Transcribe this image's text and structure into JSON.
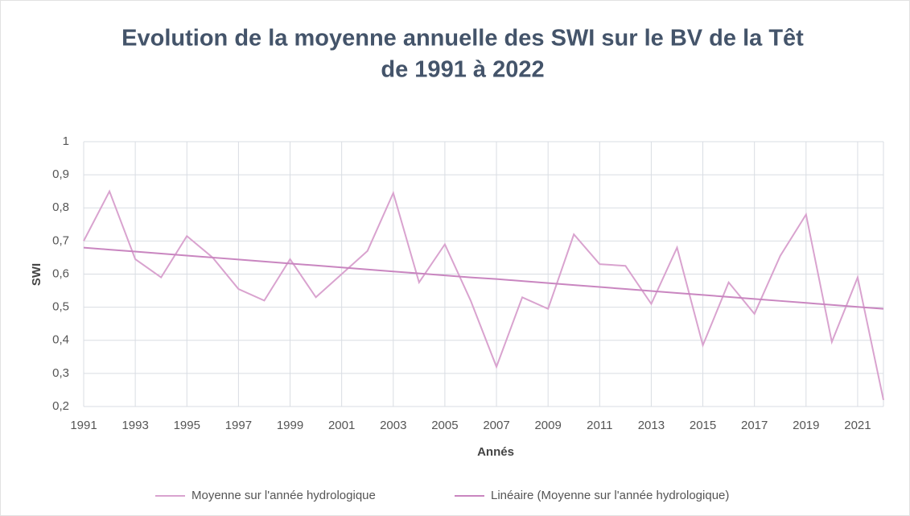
{
  "chart_data": {
    "type": "line",
    "title": [
      "Evolution de la moyenne annuelle des SWI sur le BV de la Têt",
      "de 1991 à 2022"
    ],
    "x_label": "Annés",
    "y_label": "SWI",
    "x": [
      1991,
      1992,
      1993,
      1994,
      1995,
      1996,
      1997,
      1998,
      1999,
      2000,
      2001,
      2002,
      2003,
      2004,
      2005,
      2006,
      2007,
      2008,
      2009,
      2010,
      2011,
      2012,
      2013,
      2014,
      2015,
      2016,
      2017,
      2018,
      2019,
      2020,
      2021,
      2022
    ],
    "series": [
      {
        "name": "Moyenne sur l'année hydrologique",
        "color": "#d9a3cf",
        "values": [
          0.7,
          0.85,
          0.645,
          0.59,
          0.715,
          0.65,
          0.555,
          0.52,
          0.645,
          0.53,
          0.6,
          0.67,
          0.845,
          0.575,
          0.69,
          0.52,
          0.32,
          0.53,
          0.495,
          0.72,
          0.63,
          0.625,
          0.51,
          0.68,
          0.385,
          0.575,
          0.48,
          0.655,
          0.78,
          0.395,
          0.59,
          0.22
        ]
      },
      {
        "name": "Linéaire (Moyenne sur l'année hydrologique)",
        "color": "#c986c0",
        "values": [
          0.68,
          0.674,
          0.668,
          0.662,
          0.656,
          0.65,
          0.644,
          0.638,
          0.632,
          0.626,
          0.62,
          0.614,
          0.608,
          0.602,
          0.596,
          0.59,
          0.585,
          0.579,
          0.573,
          0.567,
          0.561,
          0.555,
          0.549,
          0.543,
          0.537,
          0.531,
          0.525,
          0.519,
          0.513,
          0.507,
          0.501,
          0.495
        ]
      }
    ],
    "xlim": [
      1991,
      2022
    ],
    "xticks": [
      1991,
      1993,
      1995,
      1997,
      1999,
      2001,
      2003,
      2005,
      2007,
      2009,
      2011,
      2013,
      2015,
      2017,
      2019,
      2021
    ],
    "ylim": [
      0.2,
      1
    ],
    "yticks": [
      {
        "value": 0.2,
        "label": "0,2"
      },
      {
        "value": 0.3,
        "label": "0,3"
      },
      {
        "value": 0.4,
        "label": "0,4"
      },
      {
        "value": 0.5,
        "label": "0,5"
      },
      {
        "value": 0.6,
        "label": "0,6"
      },
      {
        "value": 0.7,
        "label": "0,7"
      },
      {
        "value": 0.8,
        "label": "0,8"
      },
      {
        "value": 0.9,
        "label": "0,9"
      },
      1
    ],
    "grid": true,
    "legend": "bottom"
  }
}
